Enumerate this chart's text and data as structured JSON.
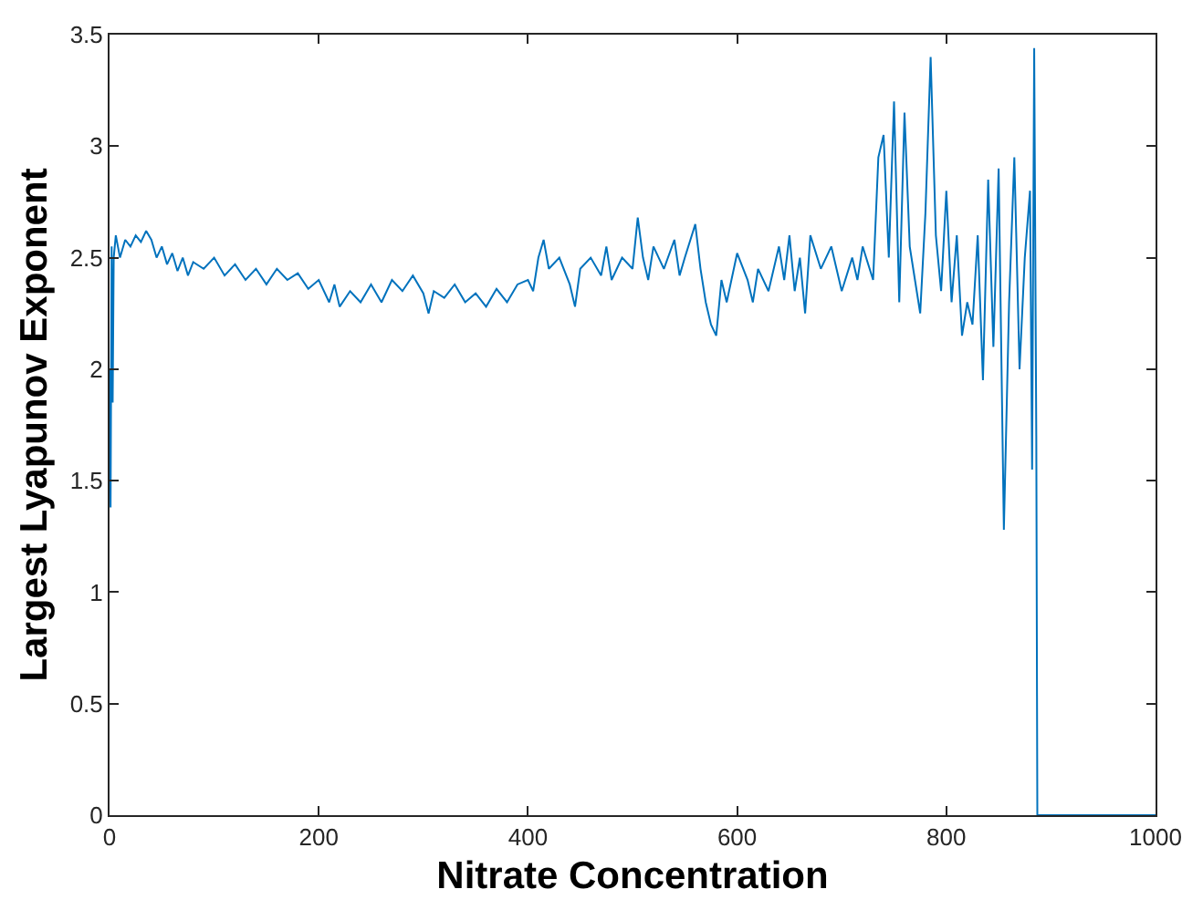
{
  "chart_data": {
    "type": "line",
    "xlabel": "Nitrate Concentration",
    "ylabel": "Largest Lyapunov Exponent",
    "xlim": [
      0,
      1000
    ],
    "ylim": [
      0,
      3.5
    ],
    "xticks": [
      0,
      200,
      400,
      600,
      800,
      1000
    ],
    "yticks": [
      0,
      0.5,
      1,
      1.5,
      2,
      2.5,
      3,
      3.5
    ],
    "grid": false,
    "legend": false,
    "marker": "none",
    "line_style": "solid",
    "series": [
      {
        "color": "#0072bd",
        "x": [
          0,
          1,
          2,
          3,
          4,
          6,
          10,
          15,
          20,
          25,
          30,
          35,
          40,
          45,
          50,
          55,
          60,
          65,
          70,
          75,
          80,
          90,
          100,
          110,
          120,
          130,
          140,
          150,
          160,
          170,
          180,
          190,
          200,
          210,
          215,
          220,
          230,
          240,
          250,
          260,
          270,
          280,
          290,
          300,
          305,
          310,
          320,
          330,
          340,
          350,
          360,
          370,
          380,
          390,
          400,
          405,
          410,
          415,
          420,
          430,
          440,
          445,
          450,
          460,
          470,
          475,
          480,
          490,
          500,
          505,
          510,
          515,
          520,
          530,
          540,
          545,
          550,
          560,
          565,
          570,
          575,
          580,
          585,
          590,
          600,
          610,
          615,
          620,
          630,
          640,
          645,
          650,
          655,
          660,
          665,
          670,
          680,
          690,
          700,
          710,
          715,
          720,
          730,
          735,
          740,
          745,
          750,
          755,
          760,
          765,
          770,
          775,
          780,
          785,
          790,
          795,
          800,
          805,
          810,
          815,
          820,
          825,
          830,
          835,
          840,
          845,
          850,
          855,
          860,
          865,
          870,
          875,
          880,
          882,
          884,
          886,
          887,
          1000
        ],
        "values": [
          2.0,
          1.38,
          2.55,
          1.85,
          2.5,
          2.6,
          2.5,
          2.58,
          2.55,
          2.6,
          2.57,
          2.62,
          2.58,
          2.5,
          2.55,
          2.47,
          2.52,
          2.44,
          2.5,
          2.42,
          2.48,
          2.45,
          2.5,
          2.42,
          2.47,
          2.4,
          2.45,
          2.38,
          2.45,
          2.4,
          2.43,
          2.36,
          2.4,
          2.3,
          2.38,
          2.28,
          2.35,
          2.3,
          2.38,
          2.3,
          2.4,
          2.35,
          2.42,
          2.34,
          2.25,
          2.35,
          2.32,
          2.38,
          2.3,
          2.34,
          2.28,
          2.36,
          2.3,
          2.38,
          2.4,
          2.35,
          2.5,
          2.58,
          2.45,
          2.5,
          2.38,
          2.28,
          2.45,
          2.5,
          2.42,
          2.55,
          2.4,
          2.5,
          2.45,
          2.68,
          2.5,
          2.4,
          2.55,
          2.45,
          2.58,
          2.42,
          2.5,
          2.65,
          2.45,
          2.3,
          2.2,
          2.15,
          2.4,
          2.3,
          2.52,
          2.4,
          2.3,
          2.45,
          2.35,
          2.55,
          2.4,
          2.6,
          2.35,
          2.5,
          2.25,
          2.6,
          2.45,
          2.55,
          2.35,
          2.5,
          2.4,
          2.55,
          2.4,
          2.95,
          3.05,
          2.5,
          3.2,
          2.3,
          3.15,
          2.55,
          2.4,
          2.25,
          2.7,
          3.4,
          2.6,
          2.35,
          2.8,
          2.3,
          2.6,
          2.15,
          2.3,
          2.2,
          2.6,
          1.95,
          2.85,
          2.1,
          2.9,
          1.28,
          2.3,
          2.95,
          2.0,
          2.5,
          2.8,
          1.55,
          3.44,
          1.7,
          0,
          0
        ]
      }
    ]
  }
}
